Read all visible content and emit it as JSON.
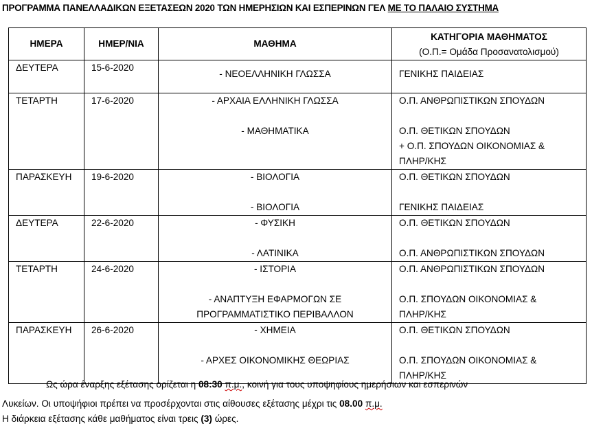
{
  "title": {
    "text": "ΠΡΟΓΡΑΜΜΑ ΠΑΝΕΛΛΑΔΙΚΩΝ ΕΞΕΤΑΣΕΩΝ 2020 ΤΩΝ ΗΜΕΡΗΣΙΩΝ ΚΑΙ ΕΣΠΕΡΙΝΩΝ ΓΕΛ ",
    "underlined": "ΜΕ ΤΟ ΠΑΛΑΙΟ  ΣΥΣΤΗΜΑ"
  },
  "table": {
    "headers": {
      "day": "ΗΜΕΡΑ",
      "date": "ΗΜΕΡ/ΝΙΑ",
      "subject": "ΜΑΘΗΜΑ",
      "category": "ΚΑΤΗΓΟΡΙΑ ΜΑΘΗΜΑΤΟΣ",
      "category_note": "(Ο.Π.= Ομάδα Προσανατολισμού)"
    },
    "rows": [
      {
        "day": "ΔΕΥΤΕΡΑ",
        "date": "15-6-2020",
        "subject": [
          "- ΝΕΟΕΛΛΗΝΙΚΗ ΓΛΩΣΣΑ"
        ],
        "category": [
          "ΓΕΝΙΚΗΣ ΠΑΙΔΕΙΑΣ"
        ]
      },
      {
        "day": "ΤΕΤΑΡΤΗ",
        "date": "17-6-2020",
        "subject": [
          "- ΑΡΧΑΙΑ ΕΛΛΗΝΙΚΗ ΓΛΩΣΣΑ",
          "",
          "- ΜΑΘΗΜΑΤΙΚΑ"
        ],
        "category": [
          "Ο.Π. ΑΝΘΡΩΠΙΣΤΙΚΩΝ ΣΠΟΥΔΩΝ",
          "",
          "Ο.Π. ΘΕΤΙΚΩΝ ΣΠΟΥΔΩΝ",
          "+ Ο.Π. ΣΠΟΥΔΩΝ ΟΙΚΟΝΟΜΙΑΣ &",
          "ΠΛΗΡ/ΚΗΣ"
        ]
      },
      {
        "day": "ΠΑΡΑΣΚΕΥΗ",
        "date": "19-6-2020",
        "subject": [
          "- ΒΙΟΛΟΓΙΑ",
          "",
          "- ΒΙΟΛΟΓΙΑ"
        ],
        "category": [
          "Ο.Π. ΘΕΤΙΚΩΝ ΣΠΟΥΔΩΝ",
          "",
          "ΓΕΝΙΚΗΣ ΠΑΙΔΕΙΑΣ"
        ]
      },
      {
        "day": "ΔΕΥΤΕΡΑ",
        "date": "22-6-2020",
        "subject": [
          "- ΦΥΣΙΚΗ",
          "",
          "- ΛΑΤΙΝΙΚΑ"
        ],
        "category": [
          "Ο.Π. ΘΕΤΙΚΩΝ ΣΠΟΥΔΩΝ",
          "",
          "Ο.Π. ΑΝΘΡΩΠΙΣΤΙΚΩΝ ΣΠΟΥΔΩΝ"
        ]
      },
      {
        "day": "ΤΕΤΑΡΤΗ",
        "date": "24-6-2020",
        "subject": [
          "- ΙΣΤΟΡΙΑ",
          "",
          "- ΑΝΑΠΤΥΞΗ ΕΦΑΡΜΟΓΩΝ ΣΕ",
          "ΠΡΟΓΡΑΜΜΑΤΙΣΤΙΚΟ ΠΕΡΙΒΑΛΛΟΝ"
        ],
        "category": [
          "Ο.Π. ΑΝΘΡΩΠΙΣΤΙΚΩΝ ΣΠΟΥΔΩΝ",
          "",
          "Ο.Π. ΣΠΟΥΔΩΝ ΟΙΚΟΝΟΜΙΑΣ &",
          "ΠΛΗΡ/ΚΗΣ"
        ]
      },
      {
        "day": "ΠΑΡΑΣΚΕΥΗ",
        "date": "26-6-2020",
        "subject": [
          "- ΧΗΜΕΙΑ",
          "",
          "- ΑΡΧΕΣ ΟΙΚΟΝΟΜΙΚΗΣ ΘΕΩΡΙΑΣ"
        ],
        "category": [
          "Ο.Π. ΘΕΤΙΚΩΝ ΣΠΟΥΔΩΝ",
          "",
          "Ο.Π. ΣΠΟΥΔΩΝ ΟΙΚΟΝΟΜΙΑΣ &",
          "ΠΛΗΡ/ΚΗΣ"
        ]
      }
    ]
  },
  "footer": {
    "line1_a": "Ως ώρα έναρξης εξέτασης ορίζεται η ",
    "line1_time": "08:30",
    "line1_pm": "π.μ.",
    "line1_b": ", κοινή για τους υποψηφίους ημερήσιων και εσπερινών",
    "line2_a": "Λυκείων. Οι υποψήφιοι πρέπει να προσέρχονται στις αίθουσες εξέτασης μέχρι τις  ",
    "line2_time": "08.00",
    "line2_pm": "π.μ.",
    "line3_a": "Η διάρκεια εξέτασης κάθε μαθήματος είναι τρεις ",
    "line3_num": "(3)",
    "line3_b": " ώρες."
  }
}
